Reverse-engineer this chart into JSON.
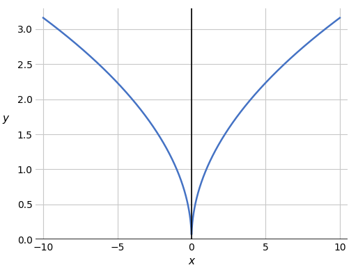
{
  "title": "",
  "xlabel": "x",
  "ylabel": "y",
  "xlim": [
    -10.5,
    10.5
  ],
  "ylim": [
    0.0,
    3.3
  ],
  "xticks": [
    -10,
    -5,
    0,
    5,
    10
  ],
  "yticks": [
    0.0,
    0.5,
    1.0,
    1.5,
    2.0,
    2.5,
    3.0
  ],
  "curve_color": "#4472C4",
  "curve_linewidth": 1.8,
  "background_color": "#ffffff",
  "grid_color": "#c8c8c8",
  "axline_color": "#000000",
  "x_range": [
    -10,
    10
  ],
  "n_points": 2000
}
